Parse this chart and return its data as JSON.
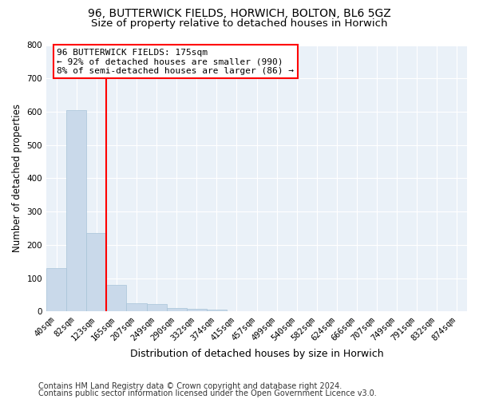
{
  "title_line1": "96, BUTTERWICK FIELDS, HORWICH, BOLTON, BL6 5GZ",
  "title_line2": "Size of property relative to detached houses in Horwich",
  "xlabel": "Distribution of detached houses by size in Horwich",
  "ylabel": "Number of detached properties",
  "bar_color": "#c9d9ea",
  "bar_edge_color": "#a8c4d8",
  "background_color": "#eaf1f8",
  "categories": [
    "40sqm",
    "82sqm",
    "123sqm",
    "165sqm",
    "207sqm",
    "249sqm",
    "290sqm",
    "332sqm",
    "374sqm",
    "415sqm",
    "457sqm",
    "499sqm",
    "540sqm",
    "582sqm",
    "624sqm",
    "666sqm",
    "707sqm",
    "749sqm",
    "791sqm",
    "832sqm",
    "874sqm"
  ],
  "values": [
    130,
    605,
    235,
    80,
    25,
    22,
    10,
    7,
    5,
    0,
    0,
    0,
    0,
    0,
    0,
    0,
    0,
    0,
    0,
    0,
    0
  ],
  "ylim": [
    0,
    800
  ],
  "yticks": [
    0,
    100,
    200,
    300,
    400,
    500,
    600,
    700,
    800
  ],
  "vline_x": 2.5,
  "annotation_text": "96 BUTTERWICK FIELDS: 175sqm\n← 92% of detached houses are smaller (990)\n8% of semi-detached houses are larger (86) →",
  "annotation_box_color": "white",
  "annotation_box_edge_color": "red",
  "vline_color": "red",
  "footer_line1": "Contains HM Land Registry data © Crown copyright and database right 2024.",
  "footer_line2": "Contains public sector information licensed under the Open Government Licence v3.0.",
  "grid_color": "white",
  "title_fontsize": 10,
  "subtitle_fontsize": 9.5,
  "tick_fontsize": 7.5,
  "xlabel_fontsize": 9,
  "ylabel_fontsize": 8.5,
  "footer_fontsize": 7
}
